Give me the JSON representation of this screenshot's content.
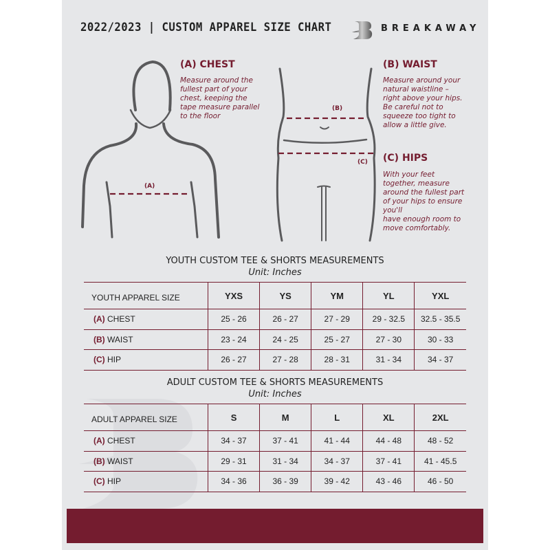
{
  "header": {
    "title": "2022/2023  |  CUSTOM APPAREL SIZE CHART",
    "brand": "BREAKAWAY"
  },
  "colors": {
    "accent": "#741c2f",
    "background": "#e6e7e9",
    "figure": "#5a5a5c"
  },
  "chest": {
    "heading": "(A) CHEST",
    "marker": "(A)",
    "lines": [
      "Measure around the",
      "fullest part of your",
      "chest, keeping the",
      "tape measure parallel",
      "to the floor"
    ]
  },
  "waist": {
    "heading": "(B) WAIST",
    "marker": "(B)",
    "lines": [
      "Measure around your",
      "natural waistline –",
      "right above your hips.",
      "Be careful not to",
      "squeeze too tight to",
      "allow a little give."
    ]
  },
  "hips": {
    "heading": "(C) HIPS",
    "marker": "(C)",
    "lines": [
      "With your feet",
      "together, measure",
      "around the fullest part",
      "of your hips to ensure",
      "you'll",
      "have enough room to",
      "move comfortably."
    ]
  },
  "youth": {
    "title": "YOUTH CUSTOM TEE & SHORTS MEASUREMENTS",
    "unit": "Unit: Inches",
    "header": [
      "YOUTH APPAREL SIZE",
      "YXS",
      "YS",
      "YM",
      "YL",
      "YXL"
    ],
    "rows": [
      {
        "letter": "(A)",
        "label": "CHEST",
        "values": [
          "25 - 26",
          "26 - 27",
          "27 - 29",
          "29 - 32.5",
          "32.5 - 35.5"
        ]
      },
      {
        "letter": "(B)",
        "label": "WAIST",
        "values": [
          "23 - 24",
          "24 - 25",
          "25 - 27",
          "27 - 30",
          "30 - 33"
        ]
      },
      {
        "letter": "(C)",
        "label": "HIP",
        "values": [
          "26 - 27",
          "27 - 28",
          "28 - 31",
          "31 - 34",
          "34 - 37"
        ]
      }
    ]
  },
  "adult": {
    "title": "ADULT CUSTOM TEE & SHORTS MEASUREMENTS",
    "unit": "Unit: Inches",
    "header": [
      "ADULT APPAREL SIZE",
      "S",
      "M",
      "L",
      "XL",
      "2XL"
    ],
    "rows": [
      {
        "letter": "(A)",
        "label": "CHEST",
        "values": [
          "34 - 37",
          "37 - 41",
          "41 - 44",
          "44 - 48",
          "48 - 52"
        ]
      },
      {
        "letter": "(B)",
        "label": "WAIST",
        "values": [
          "29 - 31",
          "31 - 34",
          "34 - 37",
          "37 - 41",
          "41 - 45.5"
        ]
      },
      {
        "letter": "(C)",
        "label": "HIP",
        "values": [
          "34 - 36",
          "36 - 39",
          "39 - 42",
          "43 - 46",
          "46 - 50"
        ]
      }
    ]
  }
}
